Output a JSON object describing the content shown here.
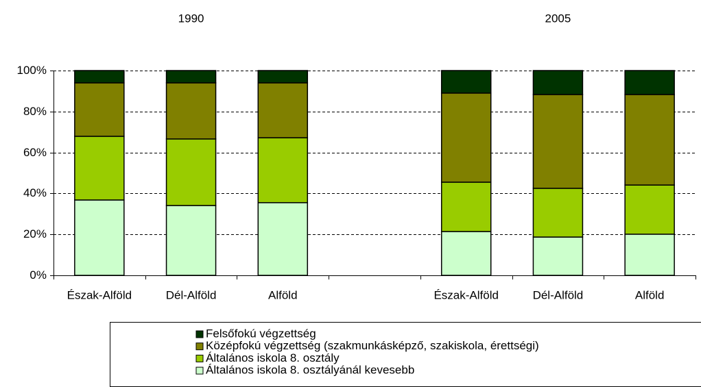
{
  "chart_data": {
    "type": "stacked_bar",
    "annotations": [
      "1990",
      "2005"
    ],
    "categories": [
      "Észak-Alföld",
      "Dél-Alföld",
      "Alföld",
      null,
      "Észak-Alföld",
      "Dél-Alföld",
      "Alföld"
    ],
    "series": [
      {
        "name": "Általános iskola 8. osztályánál kevesebb",
        "color": "#ccffcc",
        "values": [
          36.8,
          34.1,
          35.5,
          null,
          21.4,
          18.7,
          20.1
        ]
      },
      {
        "name": "Általános iskola 8. osztály",
        "color": "#99cc00",
        "values": [
          31.1,
          32.5,
          31.7,
          null,
          24.1,
          23.8,
          24.0
        ]
      },
      {
        "name": "Középfokú végzettség (szakmunkásképző, szakiskola, érettségi)",
        "color": "#808000",
        "values": [
          26.1,
          27.4,
          26.8,
          null,
          43.5,
          45.8,
          44.2
        ]
      },
      {
        "name": "Felsőfokú végzettség",
        "color": "#003300",
        "values": [
          6.0,
          6.0,
          6.0,
          null,
          11.0,
          11.7,
          11.7
        ]
      }
    ],
    "ylim": [
      0,
      100
    ],
    "yticks": [
      {
        "value": 0,
        "label": "0%"
      },
      {
        "value": 20,
        "label": "20%"
      },
      {
        "value": 40,
        "label": "40%"
      },
      {
        "value": 60,
        "label": "60%"
      },
      {
        "value": 80,
        "label": "80%"
      },
      {
        "value": 100,
        "label": "100%"
      }
    ],
    "grid": true
  }
}
